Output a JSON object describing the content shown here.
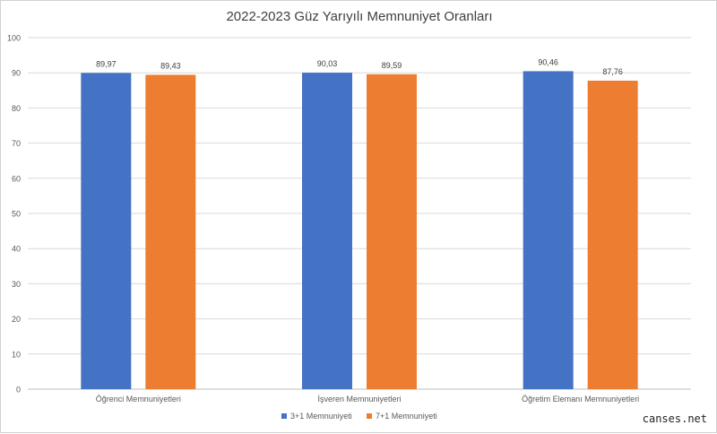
{
  "chart_data": {
    "type": "bar",
    "title": "2022-2023 Güz Yarıyılı Memnuniyet Oranları",
    "categories": [
      "Öğrenci Memnuniyetleri",
      "İşveren Memnuniyetleri",
      "Öğretim Elemanı Memnuniyetleri"
    ],
    "series": [
      {
        "name": "3+1 Memnuniyeti",
        "color": "#4472c4",
        "values": [
          89.97,
          90.03,
          90.46
        ],
        "labels": [
          "89,97",
          "90,03",
          "90,46"
        ]
      },
      {
        "name": "7+1 Memnuniyeti",
        "color": "#ed7d31",
        "values": [
          89.43,
          89.59,
          87.76
        ],
        "labels": [
          "89,43",
          "89,59",
          "87,76"
        ]
      }
    ],
    "ylim": [
      0,
      100
    ],
    "yticks": [
      0,
      10,
      20,
      30,
      40,
      50,
      60,
      70,
      80,
      90,
      100
    ],
    "grid": true,
    "legend": "bottom"
  },
  "watermark": "canses.net"
}
